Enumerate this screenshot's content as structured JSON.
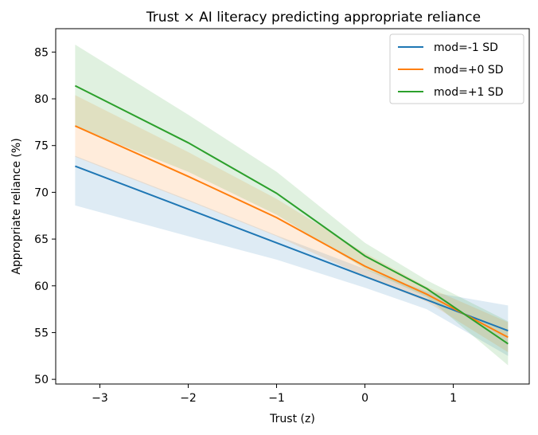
{
  "chart_data": {
    "type": "line",
    "title": "Trust × AI literacy predicting appropriate reliance",
    "xlabel": "Trust (z)",
    "ylabel": "Appropriate reliance (%)",
    "xlim": [
      -3.5,
      1.86
    ],
    "ylim": [
      49.5,
      87.5
    ],
    "xticks": [
      -3,
      -2,
      -1,
      0,
      1
    ],
    "xtick_labels": [
      "−3",
      "−2",
      "−1",
      "0",
      "1"
    ],
    "yticks": [
      50,
      55,
      60,
      65,
      70,
      75,
      80,
      85
    ],
    "ytick_labels": [
      "50",
      "55",
      "60",
      "65",
      "70",
      "75",
      "80",
      "85"
    ],
    "grid": false,
    "legend_position": "top-right",
    "series": [
      {
        "name": "mod=-1 SD",
        "color": "#1f77b4",
        "x": [
          -3.28,
          -2,
          -1,
          0,
          0.7,
          1.62
        ],
        "y": [
          72.8,
          68.2,
          64.6,
          61.0,
          58.5,
          55.2
        ],
        "ci_upper": [
          73.9,
          69.2,
          65.4,
          61.8,
          59.4,
          57.9
        ],
        "ci_lower": [
          68.6,
          65.3,
          62.8,
          59.8,
          57.5,
          52.5
        ]
      },
      {
        "name": "mod=+0 SD",
        "color": "#ff7f0e",
        "x": [
          -3.28,
          -2,
          -1,
          0,
          0.7,
          1.62
        ],
        "y": [
          77.1,
          71.7,
          67.3,
          62.1,
          59.1,
          54.5
        ],
        "ci_upper": [
          80.4,
          74.3,
          69.3,
          63.5,
          59.9,
          56.1
        ],
        "ci_lower": [
          73.8,
          69.1,
          65.3,
          61.0,
          58.3,
          52.9
        ]
      },
      {
        "name": "mod=+1 SD",
        "color": "#2ca02c",
        "x": [
          -3.28,
          -2,
          -1,
          0,
          0.7,
          1.62
        ],
        "y": [
          81.4,
          75.3,
          69.9,
          63.2,
          59.7,
          53.8
        ],
        "ci_upper": [
          85.8,
          78.3,
          72.2,
          64.6,
          60.6,
          56.2
        ],
        "ci_lower": [
          77.0,
          72.2,
          67.6,
          61.8,
          58.8,
          51.5
        ]
      }
    ]
  }
}
